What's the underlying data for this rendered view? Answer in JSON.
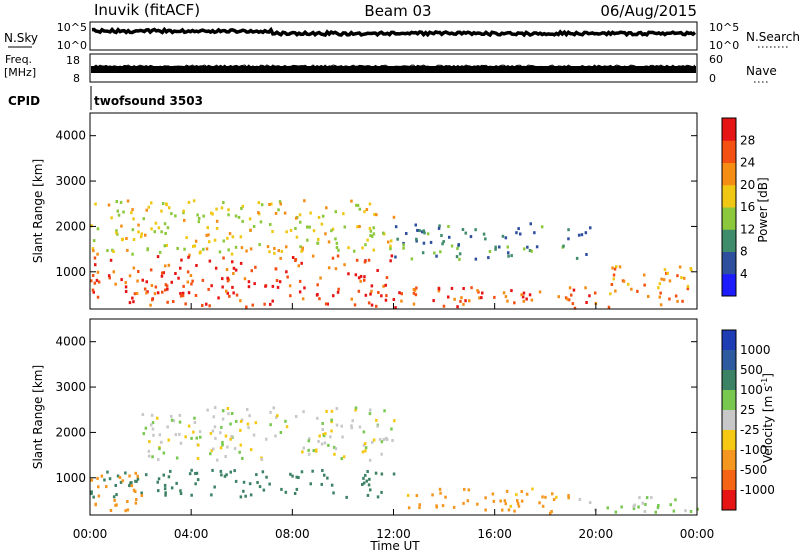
{
  "header": {
    "station": "Inuvik (fitACF)",
    "beam": "Beam 03",
    "date": "06/Aug/2015"
  },
  "noise_panel": {
    "left_label": "N.Sky",
    "right_label": "N.Search",
    "tick_top": "10^5",
    "tick_bottom": "10^0"
  },
  "freq_panel": {
    "left_label_1": "Freq.",
    "left_label_2": "[MHz]",
    "right_label": "Nave",
    "left_ticks": [
      "18",
      "8"
    ],
    "right_ticks": [
      "60",
      "0"
    ]
  },
  "cpid": {
    "label": "CPID",
    "value": "twofsound 3503"
  },
  "time_axis": {
    "label": "Time UT",
    "ticks": [
      "00:00",
      "04:00",
      "08:00",
      "12:00",
      "16:00",
      "20:00",
      "00:00"
    ]
  },
  "power_panel": {
    "ylabel": "Slant Range [km]",
    "yticks": [
      1000,
      2000,
      3000,
      4000
    ],
    "yrange_km": [
      180,
      4500
    ],
    "colorbar_label": "Power [dB]",
    "colorbar_ticks": [
      "4",
      "8",
      "12",
      "16",
      "20",
      "24",
      "28"
    ],
    "colors": [
      "#1c1cff",
      "#2e4f9e",
      "#3f8c6a",
      "#8cc83c",
      "#f0c814",
      "#f58c14",
      "#f55014",
      "#e61414"
    ]
  },
  "velocity_panel": {
    "ylabel": "Slant Range [km]",
    "yticks": [
      1000,
      2000,
      3000,
      4000
    ],
    "yrange_km": [
      180,
      4500
    ],
    "colorbar_label": "Velocity [m s^-1]",
    "colorbar_ticks": [
      "1000",
      "500",
      "100",
      "25",
      "-25",
      "-100",
      "-500",
      "-1000"
    ],
    "colors": [
      "#1e3cb4",
      "#2e5aa0",
      "#3c8264",
      "#78c850",
      "#c8c8c8",
      "#f5c814",
      "#f5961e",
      "#f56414",
      "#e61414"
    ]
  },
  "chart_data": [
    {
      "type": "heatmap",
      "title": "Power",
      "xlabel": "Time UT",
      "ylabel": "Slant Range [km]",
      "xlim": [
        "00:00",
        "24:00"
      ],
      "ylim": [
        180,
        4500
      ],
      "clim": [
        0,
        30
      ],
      "regions": [
        {
          "t0": 0.0,
          "t1": 12.0,
          "r0": 250,
          "r1": 1400,
          "v": 27
        },
        {
          "t0": 0.0,
          "t1": 12.0,
          "r0": 1400,
          "r1": 2600,
          "v": 17
        },
        {
          "t0": 12.0,
          "t1": 20.5,
          "r0": 200,
          "r1": 700,
          "v": 26
        },
        {
          "t0": 12.0,
          "t1": 20.0,
          "r0": 1300,
          "r1": 2100,
          "v": 9
        },
        {
          "t0": 20.5,
          "t1": 24.0,
          "r0": 300,
          "r1": 1200,
          "v": 22
        }
      ]
    },
    {
      "type": "heatmap",
      "title": "Velocity",
      "xlabel": "Time UT",
      "ylabel": "Slant Range [km]",
      "xlim": [
        "00:00",
        "24:00"
      ],
      "ylim": [
        180,
        4500
      ],
      "clim": [
        -1000,
        1000
      ],
      "regions": [
        {
          "t0": 0.0,
          "t1": 12.0,
          "r0": 600,
          "r1": 1200,
          "v": 200
        },
        {
          "t0": 2.0,
          "t1": 12.0,
          "r0": 1400,
          "r1": 2600,
          "v": 0
        },
        {
          "t0": 0.0,
          "t1": 2.0,
          "r0": 300,
          "r1": 1200,
          "v": -200
        },
        {
          "t0": 12.0,
          "t1": 19.0,
          "r0": 250,
          "r1": 800,
          "v": -150
        },
        {
          "t0": 19.0,
          "t1": 24.0,
          "r0": 250,
          "r1": 600,
          "v": 30
        }
      ]
    }
  ]
}
